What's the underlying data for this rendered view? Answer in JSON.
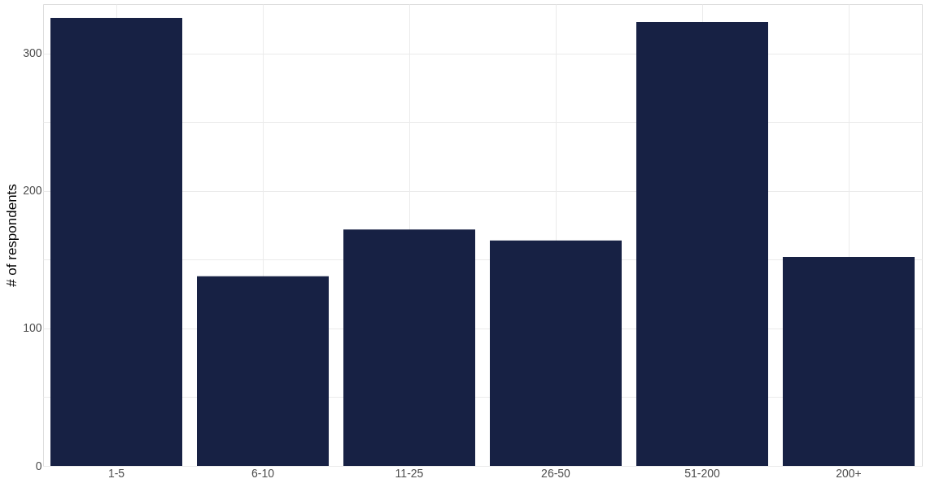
{
  "chart_data": {
    "type": "bar",
    "ylabel": "# of respondents",
    "categories": [
      "1-5",
      "6-10",
      "11-25",
      "26-50",
      "51-200",
      "200+"
    ],
    "values": [
      326,
      138,
      172,
      164,
      323,
      152
    ],
    "color": "#172144",
    "ylim": [
      0,
      336
    ],
    "yticks": [
      0,
      {
        "value": 50,
        "label": null
      },
      100,
      {
        "value": 150,
        "label": null
      },
      200,
      {
        "value": 250,
        "label": null
      },
      300
    ],
    "grid": true
  }
}
